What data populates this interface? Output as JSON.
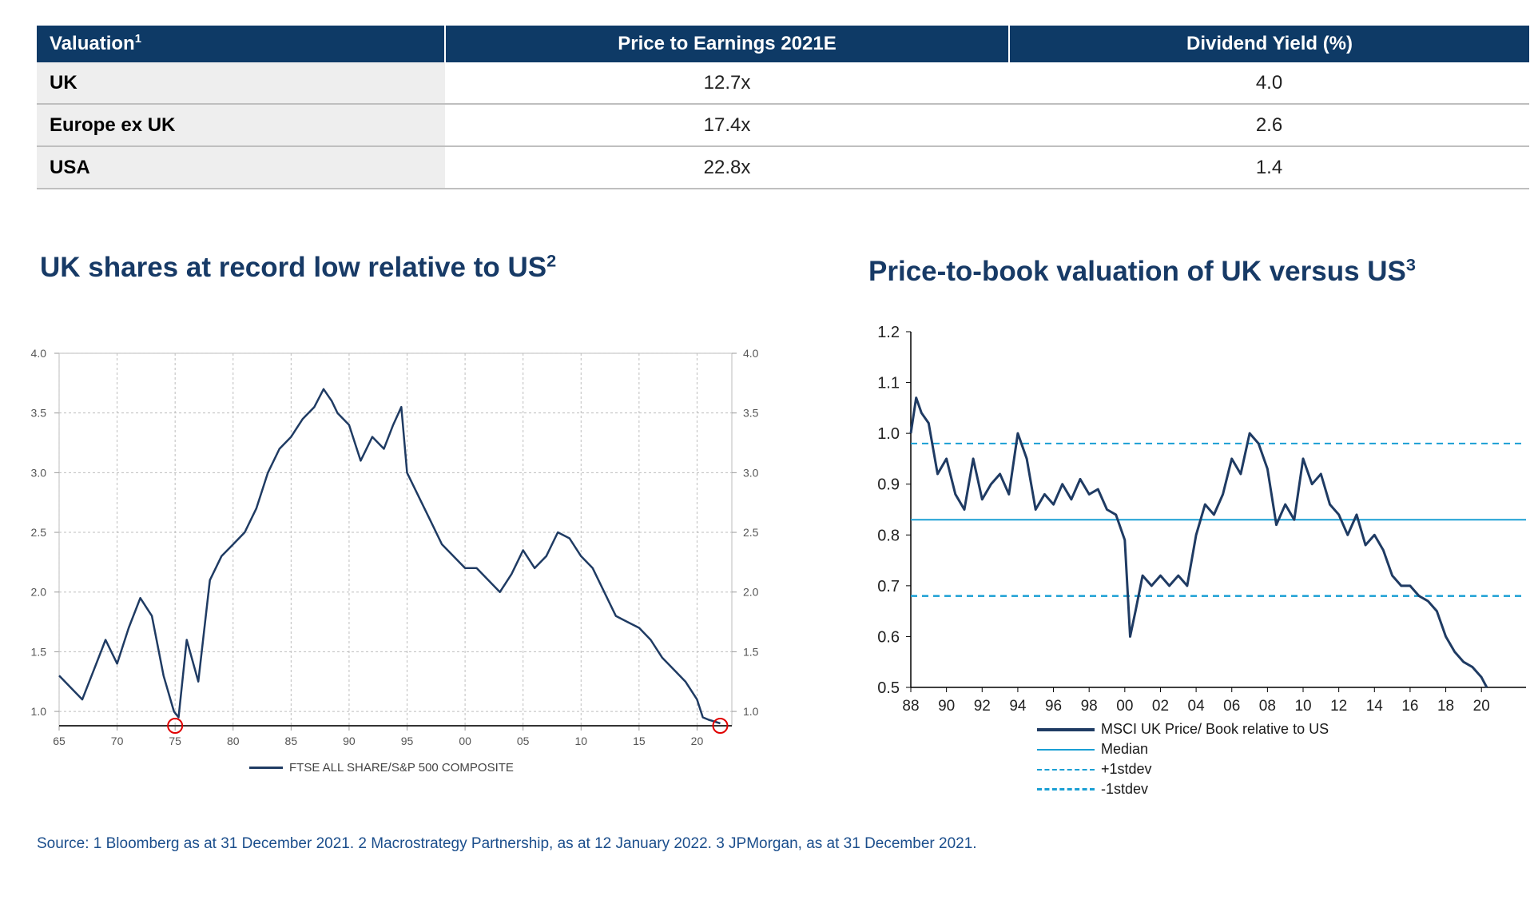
{
  "table": {
    "headers": [
      "Valuation",
      "Price to Earnings 2021E",
      "Dividend Yield (%)"
    ],
    "header_note": "1",
    "rows": [
      {
        "label": "UK",
        "pe": "12.7x",
        "dy": "4.0"
      },
      {
        "label": "Europe ex UK",
        "pe": "17.4x",
        "dy": "2.6"
      },
      {
        "label": "USA",
        "pe": "22.8x",
        "dy": "1.4"
      }
    ]
  },
  "left_chart": {
    "title": "UK shares at record low relative to US",
    "title_note": "2"
  },
  "right_chart": {
    "title": "Price-to-book valuation of UK versus US",
    "title_note": "3"
  },
  "footer": {
    "source": "Source: 1  Bloomberg as at 31 December 2021. 2  Macrostrategy Partnership, as at 12 January 2022. 3  JPMorgan, as at 31 December 2021."
  },
  "colors": {
    "header_bg": "#0e3a66",
    "title": "#173a66",
    "series": "#1f3b63",
    "median": "#1a9fd4",
    "marker": "#e00000",
    "source": "#1b4e8c"
  },
  "chart_data": [
    {
      "type": "line",
      "title": "UK shares at record low relative to US",
      "xlabel": "",
      "ylabel": "",
      "x_tick_labels": [
        "65",
        "70",
        "75",
        "80",
        "85",
        "90",
        "95",
        "00",
        "05",
        "10",
        "15",
        "20"
      ],
      "y_tick_labels": [
        "1.0",
        "1.5",
        "2.0",
        "2.5",
        "3.0",
        "3.5",
        "4.0"
      ],
      "ylim": [
        0.88,
        4.0
      ],
      "xlim": [
        1965,
        2023
      ],
      "grid": true,
      "dual_axis": true,
      "legend_position": "bottom-center",
      "series": [
        {
          "name": "FTSE ALL SHARE/S&P 500 COMPOSITE",
          "x": [
            1965,
            1966,
            1967,
            1968,
            1969,
            1970,
            1971,
            1972,
            1973,
            1974,
            1974.9,
            1975.3,
            1976,
            1977,
            1978,
            1979,
            1980,
            1981,
            1982,
            1983,
            1984,
            1985,
            1986,
            1987,
            1987.8,
            1988.5,
            1989,
            1990,
            1991,
            1992,
            1993,
            1993.8,
            1994.5,
            1995,
            1996,
            1997,
            1998,
            1999,
            2000,
            2001,
            2002,
            2003,
            2004,
            2005,
            2006,
            2007,
            2008,
            2009,
            2010,
            2011,
            2012,
            2013,
            2014,
            2015,
            2016,
            2017,
            2018,
            2019,
            2020,
            2020.5,
            2021,
            2022
          ],
          "values": [
            1.3,
            1.2,
            1.1,
            1.35,
            1.6,
            1.4,
            1.7,
            1.95,
            1.8,
            1.3,
            1.0,
            0.95,
            1.6,
            1.25,
            2.1,
            2.3,
            2.4,
            2.5,
            2.7,
            3.0,
            3.2,
            3.3,
            3.45,
            3.55,
            3.7,
            3.6,
            3.5,
            3.4,
            3.1,
            3.3,
            3.2,
            3.4,
            3.55,
            3.0,
            2.8,
            2.6,
            2.4,
            2.3,
            2.2,
            2.2,
            2.1,
            2.0,
            2.15,
            2.35,
            2.2,
            2.3,
            2.5,
            2.45,
            2.3,
            2.2,
            2.0,
            1.8,
            1.75,
            1.7,
            1.6,
            1.45,
            1.35,
            1.25,
            1.1,
            0.95,
            0.93,
            0.9
          ]
        }
      ],
      "annotations": [
        {
          "type": "circle",
          "x": 1975,
          "y": 0.88
        },
        {
          "type": "circle",
          "x": 2022,
          "y": 0.88
        }
      ]
    },
    {
      "type": "line",
      "title": "Price-to-book valuation of UK versus US",
      "xlabel": "",
      "ylabel": "",
      "x_tick_labels": [
        "88",
        "90",
        "92",
        "94",
        "96",
        "98",
        "00",
        "02",
        "04",
        "06",
        "08",
        "10",
        "12",
        "14",
        "16",
        "18",
        "20"
      ],
      "y_tick_labels": [
        "0.5",
        "0.6",
        "0.7",
        "0.8",
        "0.9",
        "1.0",
        "1.1",
        "1.2"
      ],
      "ylim": [
        0.5,
        1.2
      ],
      "xlim": [
        1988,
        2022.5
      ],
      "legend_position": "bottom-left",
      "series": [
        {
          "name": "MSCI UK Price/ Book relative to US",
          "x": [
            1988,
            1988.3,
            1988.6,
            1989,
            1989.5,
            1990,
            1990.5,
            1991,
            1991.5,
            1992,
            1992.5,
            1993,
            1993.5,
            1994,
            1994.5,
            1995,
            1995.5,
            1996,
            1996.5,
            1997,
            1997.5,
            1998,
            1998.5,
            1999,
            1999.5,
            2000,
            2000.3,
            2000.6,
            2001,
            2001.5,
            2002,
            2002.5,
            2003,
            2003.5,
            2004,
            2004.5,
            2005,
            2005.5,
            2006,
            2006.5,
            2007,
            2007.5,
            2008,
            2008.5,
            2009,
            2009.5,
            2010,
            2010.5,
            2011,
            2011.5,
            2012,
            2012.5,
            2013,
            2013.5,
            2014,
            2014.5,
            2015,
            2015.5,
            2016,
            2016.5,
            2017,
            2017.5,
            2018,
            2018.5,
            2019,
            2019.5,
            2020,
            2020.3
          ],
          "values": [
            1.0,
            1.07,
            1.04,
            1.02,
            0.92,
            0.95,
            0.88,
            0.85,
            0.95,
            0.87,
            0.9,
            0.92,
            0.88,
            1.0,
            0.95,
            0.85,
            0.88,
            0.86,
            0.9,
            0.87,
            0.91,
            0.88,
            0.89,
            0.85,
            0.84,
            0.79,
            0.6,
            0.65,
            0.72,
            0.7,
            0.72,
            0.7,
            0.72,
            0.7,
            0.8,
            0.86,
            0.84,
            0.88,
            0.95,
            0.92,
            1.0,
            0.98,
            0.93,
            0.82,
            0.86,
            0.83,
            0.95,
            0.9,
            0.92,
            0.86,
            0.84,
            0.8,
            0.84,
            0.78,
            0.8,
            0.77,
            0.72,
            0.7,
            0.7,
            0.68,
            0.67,
            0.65,
            0.6,
            0.57,
            0.55,
            0.54,
            0.52,
            0.5
          ]
        },
        {
          "name": "Median",
          "x": [
            1988,
            2022.5
          ],
          "values": [
            0.83,
            0.83
          ]
        },
        {
          "name": "+1stdev",
          "x": [
            1988,
            2022.5
          ],
          "values": [
            0.98,
            0.98
          ]
        },
        {
          "name": "-1stdev",
          "x": [
            1988,
            2022.5
          ],
          "values": [
            0.68,
            0.68
          ]
        }
      ]
    }
  ]
}
